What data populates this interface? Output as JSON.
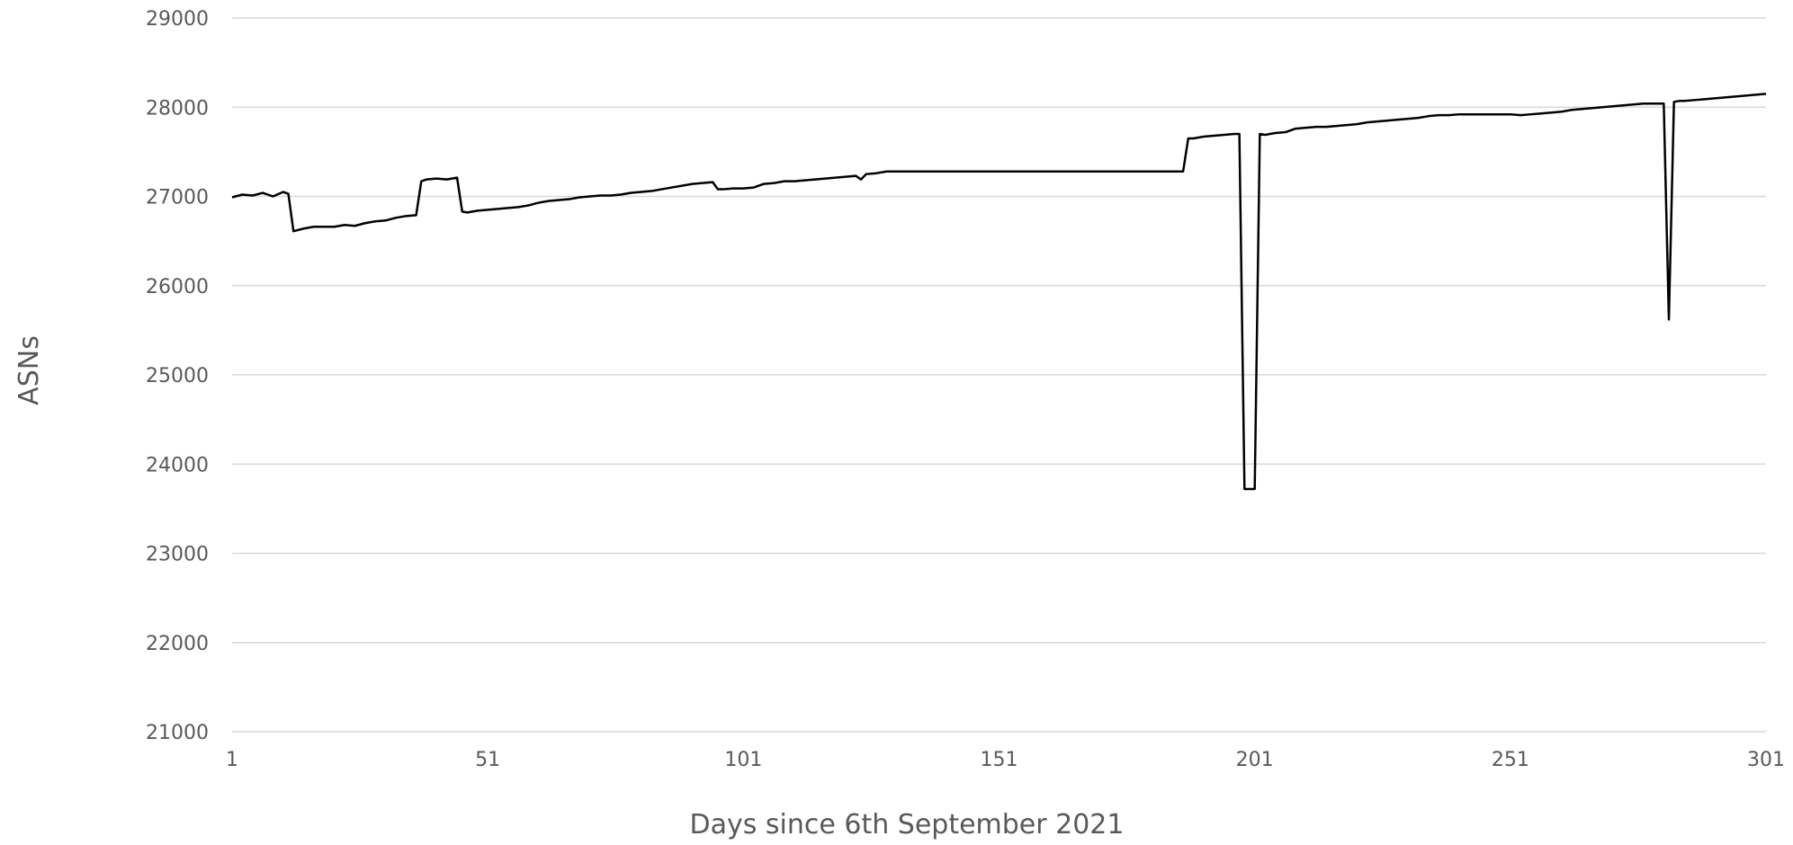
{
  "chart_data": {
    "type": "line",
    "title": "",
    "xlabel": "Days since 6th September 2021",
    "ylabel": "ASNs",
    "xlim": [
      1,
      301
    ],
    "ylim": [
      21000,
      29000
    ],
    "x_ticks": [
      1,
      51,
      101,
      151,
      201,
      251,
      301
    ],
    "y_ticks": [
      21000,
      22000,
      23000,
      24000,
      25000,
      26000,
      27000,
      28000,
      29000
    ],
    "x_tick_labels": [
      "1",
      "51",
      "101",
      "151",
      "201",
      "251",
      "301"
    ],
    "y_tick_labels": [
      "21000",
      "22000",
      "23000",
      "24000",
      "25000",
      "26000",
      "27000",
      "28000",
      "29000"
    ],
    "grid": "horizontal",
    "legend": "none",
    "colors": {
      "line": "#000000",
      "grid": "#d9d9d9",
      "text": "#595959"
    },
    "series": [
      {
        "x": [
          1,
          3,
          5,
          7,
          9,
          11,
          12,
          13,
          15,
          17,
          19,
          21,
          23,
          25,
          27,
          29,
          31,
          33,
          35,
          37,
          38,
          39,
          41,
          43,
          45,
          46,
          47,
          49,
          51,
          53,
          55,
          57,
          59,
          61,
          63,
          65,
          67,
          69,
          71,
          73,
          75,
          77,
          79,
          81,
          83,
          85,
          87,
          89,
          91,
          93,
          95,
          96,
          97,
          99,
          101,
          103,
          105,
          107,
          109,
          111,
          113,
          115,
          117,
          119,
          121,
          123,
          124,
          125,
          127,
          129,
          131,
          187,
          188,
          189,
          191,
          193,
          195,
          197,
          198,
          199,
          200,
          201,
          202,
          203,
          205,
          207,
          209,
          211,
          213,
          215,
          217,
          219,
          221,
          223,
          225,
          227,
          229,
          231,
          233,
          235,
          237,
          239,
          241,
          243,
          245,
          247,
          249,
          251,
          253,
          255,
          257,
          259,
          261,
          263,
          265,
          267,
          269,
          271,
          273,
          275,
          277,
          279,
          281,
          282,
          283,
          284,
          285,
          287,
          289,
          291,
          293,
          295,
          297,
          299,
          301
        ],
        "y": [
          26990,
          27020,
          27010,
          27040,
          27000,
          27050,
          27030,
          26610,
          26640,
          26660,
          26660,
          26660,
          26680,
          26670,
          26700,
          26720,
          26730,
          26760,
          26780,
          26790,
          27170,
          27190,
          27200,
          27190,
          27210,
          26830,
          26820,
          26840,
          26850,
          26860,
          26870,
          26880,
          26900,
          26930,
          26950,
          26960,
          26970,
          26990,
          27000,
          27010,
          27010,
          27020,
          27040,
          27050,
          27060,
          27080,
          27100,
          27120,
          27140,
          27150,
          27160,
          27080,
          27080,
          27090,
          27090,
          27100,
          27140,
          27150,
          27170,
          27170,
          27180,
          27190,
          27200,
          27210,
          27220,
          27230,
          27190,
          27250,
          27260,
          27280,
          27280,
          27280,
          27650,
          27650,
          27670,
          27680,
          27690,
          27700,
          27700,
          23720,
          23720,
          23720,
          27700,
          27690,
          27710,
          27720,
          27760,
          27770,
          27780,
          27780,
          27790,
          27800,
          27810,
          27830,
          27840,
          27850,
          27860,
          27870,
          27880,
          27900,
          27910,
          27910,
          27920,
          27920,
          27920,
          27920,
          27920,
          27920,
          27910,
          27920,
          27930,
          27940,
          27950,
          27970,
          27980,
          27990,
          28000,
          28010,
          28020,
          28030,
          28040,
          28040,
          28040,
          25620,
          28060,
          28070,
          28070,
          28080,
          28090,
          28100,
          28110,
          28120,
          28130,
          28140,
          28150
        ]
      }
    ]
  }
}
